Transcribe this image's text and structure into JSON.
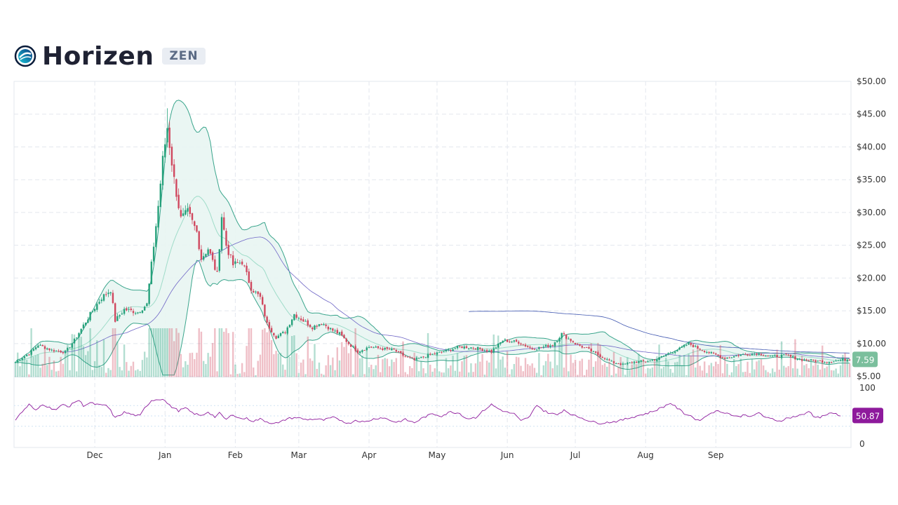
{
  "header": {
    "title": "Horizen",
    "ticker": "ZEN",
    "logo_icon": "horizen-logo-icon"
  },
  "colors": {
    "up": "#26a17b",
    "down": "#d0485f",
    "band_line": "#3aa58c",
    "band_fill": "#e8f5f2",
    "mid_line": "#9fdcc9",
    "ma_line": "#6f66c6",
    "ma200_line": "#3f56b0",
    "rsi": "#8e1a9c",
    "last_price_bg": "#7bbf9d",
    "rsi_badge_bg": "#8e1a9c",
    "grid": "#e3e7ee"
  },
  "chart_data": {
    "type": "candlestick",
    "price_axis": {
      "ticks": [
        "$50.00",
        "$45.00",
        "$40.00",
        "$35.00",
        "$30.00",
        "$25.00",
        "$20.00",
        "$15.00",
        "$10.00",
        "$5.00"
      ],
      "ylim": [
        5,
        50
      ]
    },
    "months": [
      "Dec",
      "Jan",
      "Feb",
      "Mar",
      "Apr",
      "May",
      "Jun",
      "Jul",
      "Aug",
      "Sep"
    ],
    "last_price": "7.59",
    "price_keyframes": [
      [
        0,
        7.2
      ],
      [
        6,
        8.5
      ],
      [
        10,
        9.8
      ],
      [
        16,
        9.0
      ],
      [
        22,
        8.7
      ],
      [
        26,
        10.5
      ],
      [
        30,
        12.8
      ],
      [
        34,
        15.0
      ],
      [
        38,
        17.0
      ],
      [
        42,
        18.2
      ],
      [
        44,
        13.5
      ],
      [
        48,
        15.2
      ],
      [
        54,
        14.8
      ],
      [
        58,
        16.0
      ],
      [
        60,
        22.0
      ],
      [
        63,
        31.0
      ],
      [
        65,
        38.0
      ],
      [
        67,
        43.0
      ],
      [
        70,
        35.0
      ],
      [
        73,
        29.0
      ],
      [
        76,
        30.0
      ],
      [
        80,
        27.0
      ],
      [
        82,
        23.0
      ],
      [
        85,
        24.5
      ],
      [
        89,
        20.5
      ],
      [
        91,
        29.5
      ],
      [
        93,
        25.0
      ],
      [
        96,
        22.0
      ],
      [
        100,
        22.5
      ],
      [
        104,
        18.5
      ],
      [
        108,
        17.0
      ],
      [
        111,
        13.0
      ],
      [
        115,
        11.0
      ],
      [
        119,
        11.8
      ],
      [
        123,
        14.5
      ],
      [
        127,
        13.5
      ],
      [
        131,
        12.5
      ],
      [
        135,
        13.2
      ],
      [
        140,
        12.0
      ],
      [
        143,
        11.5
      ],
      [
        147,
        10.0
      ],
      [
        151,
        8.8
      ],
      [
        156,
        9.5
      ],
      [
        162,
        9.2
      ],
      [
        167,
        9.0
      ],
      [
        171,
        8.2
      ],
      [
        176,
        7.5
      ],
      [
        182,
        8.2
      ],
      [
        188,
        8.7
      ],
      [
        196,
        9.5
      ],
      [
        202,
        9.4
      ],
      [
        210,
        8.8
      ],
      [
        215,
        10.5
      ],
      [
        222,
        10.2
      ],
      [
        228,
        9.2
      ],
      [
        233,
        9.5
      ],
      [
        237,
        9.8
      ],
      [
        241,
        11.5
      ],
      [
        247,
        10.0
      ],
      [
        252,
        9.2
      ],
      [
        257,
        8.3
      ],
      [
        263,
        7.2
      ],
      [
        268,
        6.8
      ],
      [
        273,
        7.2
      ],
      [
        278,
        7.3
      ],
      [
        283,
        7.6
      ],
      [
        288,
        8.5
      ],
      [
        293,
        9.2
      ],
      [
        297,
        10.0
      ],
      [
        301,
        9.3
      ],
      [
        307,
        8.5
      ],
      [
        313,
        7.8
      ],
      [
        320,
        8.3
      ],
      [
        327,
        8.5
      ],
      [
        334,
        8.0
      ],
      [
        340,
        8.2
      ],
      [
        346,
        7.6
      ],
      [
        352,
        7.4
      ],
      [
        358,
        7.2
      ],
      [
        364,
        7.5
      ],
      [
        368,
        7.6
      ]
    ],
    "rsi_axis": {
      "ticks": [
        "100",
        "0"
      ],
      "ylim": [
        0,
        100
      ],
      "bands": [
        70,
        30
      ]
    },
    "last_rsi": "50.87",
    "rsi_keyframes": [
      [
        0,
        43
      ],
      [
        3,
        58
      ],
      [
        6,
        72
      ],
      [
        9,
        60
      ],
      [
        12,
        73
      ],
      [
        15,
        66
      ],
      [
        18,
        62
      ],
      [
        21,
        72
      ],
      [
        24,
        68
      ],
      [
        26,
        77
      ],
      [
        28,
        80
      ],
      [
        30,
        70
      ],
      [
        33,
        75
      ],
      [
        36,
        72
      ],
      [
        38,
        70
      ],
      [
        40,
        71
      ],
      [
        42,
        60
      ],
      [
        44,
        46
      ],
      [
        48,
        57
      ],
      [
        52,
        52
      ],
      [
        55,
        50
      ],
      [
        57,
        65
      ],
      [
        60,
        80
      ],
      [
        63,
        82
      ],
      [
        65,
        83
      ],
      [
        68,
        70
      ],
      [
        72,
        60
      ],
      [
        75,
        65
      ],
      [
        78,
        56
      ],
      [
        82,
        50
      ],
      [
        85,
        58
      ],
      [
        88,
        48
      ],
      [
        90,
        55
      ],
      [
        93,
        43
      ],
      [
        96,
        53
      ],
      [
        99,
        45
      ],
      [
        102,
        45
      ],
      [
        105,
        40
      ],
      [
        108,
        44
      ],
      [
        112,
        37
      ],
      [
        116,
        36
      ],
      [
        120,
        45
      ],
      [
        124,
        47
      ],
      [
        128,
        43
      ],
      [
        132,
        44
      ],
      [
        136,
        42
      ],
      [
        140,
        47
      ],
      [
        144,
        41
      ],
      [
        147,
        35
      ],
      [
        150,
        42
      ],
      [
        154,
        38
      ],
      [
        158,
        44
      ],
      [
        162,
        47
      ],
      [
        165,
        42
      ],
      [
        168,
        38
      ],
      [
        172,
        43
      ],
      [
        176,
        37
      ],
      [
        180,
        47
      ],
      [
        184,
        54
      ],
      [
        188,
        50
      ],
      [
        192,
        58
      ],
      [
        196,
        55
      ],
      [
        199,
        45
      ],
      [
        203,
        47
      ],
      [
        207,
        62
      ],
      [
        210,
        72
      ],
      [
        213,
        64
      ],
      [
        216,
        58
      ],
      [
        220,
        54
      ],
      [
        223,
        40
      ],
      [
        227,
        49
      ],
      [
        230,
        72
      ],
      [
        233,
        60
      ],
      [
        236,
        55
      ],
      [
        239,
        52
      ],
      [
        242,
        62
      ],
      [
        246,
        51
      ],
      [
        250,
        46
      ],
      [
        254,
        39
      ],
      [
        258,
        36
      ],
      [
        262,
        38
      ],
      [
        266,
        40
      ],
      [
        270,
        45
      ],
      [
        274,
        50
      ],
      [
        278,
        54
      ],
      [
        282,
        60
      ],
      [
        286,
        68
      ],
      [
        289,
        75
      ],
      [
        292,
        65
      ],
      [
        295,
        55
      ],
      [
        298,
        50
      ],
      [
        301,
        41
      ],
      [
        304,
        47
      ],
      [
        307,
        57
      ],
      [
        310,
        59
      ],
      [
        313,
        57
      ],
      [
        316,
        52
      ],
      [
        319,
        48
      ],
      [
        322,
        53
      ],
      [
        325,
        48
      ],
      [
        328,
        57
      ],
      [
        331,
        46
      ],
      [
        334,
        44
      ],
      [
        337,
        40
      ],
      [
        340,
        45
      ],
      [
        344,
        49
      ],
      [
        348,
        53
      ],
      [
        350,
        60
      ],
      [
        352,
        50
      ],
      [
        355,
        47
      ],
      [
        358,
        53
      ],
      [
        361,
        55
      ],
      [
        364,
        51
      ]
    ]
  }
}
